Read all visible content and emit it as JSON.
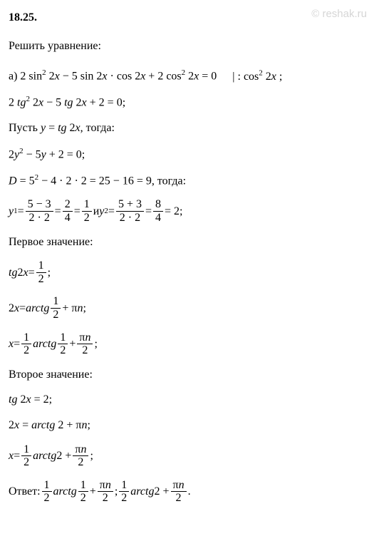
{
  "watermark": "© reshak.ru",
  "problem_number": "18.25.",
  "heading": "Решить уравнение:",
  "lines": {
    "l1_a": "a) 2 sin",
    "l1_b": " 2",
    "l1_c": " − 5 sin 2",
    "l1_d": " · cos 2",
    "l1_e": " + 2 cos",
    "l1_f": " 2",
    "l1_g": " = 0",
    "l1_div": "| : cos",
    "l1_div2": " 2",
    "l1_div3": " ;",
    "l2_a": "2 ",
    "l2_b": " 2",
    "l2_c": " − 5 ",
    "l2_d": " 2",
    "l2_e": " + 2 = 0;",
    "l3_a": "Пусть ",
    "l3_b": " = ",
    "l3_c": " 2",
    "l3_d": ", тогда:",
    "l4_a": "2",
    "l4_b": " − 5",
    "l4_c": " + 2 = 0;",
    "l5_a": " = 5",
    "l5_b": " − 4 · 2 · 2 = 25 − 16 = 9, тогда:",
    "l6_pre": " = ",
    "l6_n1": "5 − 3",
    "l6_d1": "2 · 2",
    "l6_mid1": " = ",
    "l6_n2": "2",
    "l6_d2": "4",
    "l6_mid2": " = ",
    "l6_n3": "1",
    "l6_d3": "2",
    "l6_and": "  и  ",
    "l6_pre2": " = ",
    "l6_n4": "5 + 3",
    "l6_d4": "2 · 2",
    "l6_mid3": " = ",
    "l6_n5": "8",
    "l6_d5": "4",
    "l6_end": " = 2;",
    "h_first": "Первое значение:",
    "l7_a": " 2",
    "l7_b": " = ",
    "l7_n": "1",
    "l7_d": "2",
    "l7_end": " ;",
    "l8_a": "2",
    "l8_b": " = ",
    "l8_c": " ",
    "l8_n": "1",
    "l8_d": "2",
    "l8_e": " + π",
    "l8_f": ";",
    "l9_a": " = ",
    "l9_n1": "1",
    "l9_d1": "2",
    "l9_mid": " ",
    "l9_arc": " ",
    "l9_n2": "1",
    "l9_d2": "2",
    "l9_plus": " + ",
    "l9_n3": "π",
    "l9_d3": "2",
    "l9_end": " ;",
    "h_second": "Второе значение:",
    "l10_a": " 2",
    "l10_b": " = 2;",
    "l11_a": "2",
    "l11_b": " = ",
    "l11_c": " 2 + π",
    "l11_d": ";",
    "l12_a": " = ",
    "l12_n1": "1",
    "l12_d1": "2",
    "l12_mid": " ",
    "l12_arc": " 2 + ",
    "l12_n2": "π",
    "l12_d2": "2",
    "l12_end": " ;",
    "ans_label": "Ответ:  ",
    "ans_n1": "1",
    "ans_d1": "2",
    "ans_arc1": " ",
    "ans_n2": "1",
    "ans_d2": "2",
    "ans_plus1": " + ",
    "ans_n3": "π",
    "ans_d3": "2",
    "ans_sep": " ; ",
    "ans_n4": "1",
    "ans_d4": "2",
    "ans_arc2": " 2 + ",
    "ans_n5": "π",
    "ans_d5": "2",
    "ans_end": " .",
    "var_x": "x",
    "var_y": "y",
    "var_n": "n",
    "var_D": "D",
    "tg": "tg",
    "arctg": "arctg",
    "sq": "2",
    "sub1": "1",
    "sub2": "2"
  },
  "style": {
    "font_size": 16,
    "background": "#ffffff",
    "text_color": "#000000",
    "watermark_color": "#d6d6d6"
  }
}
